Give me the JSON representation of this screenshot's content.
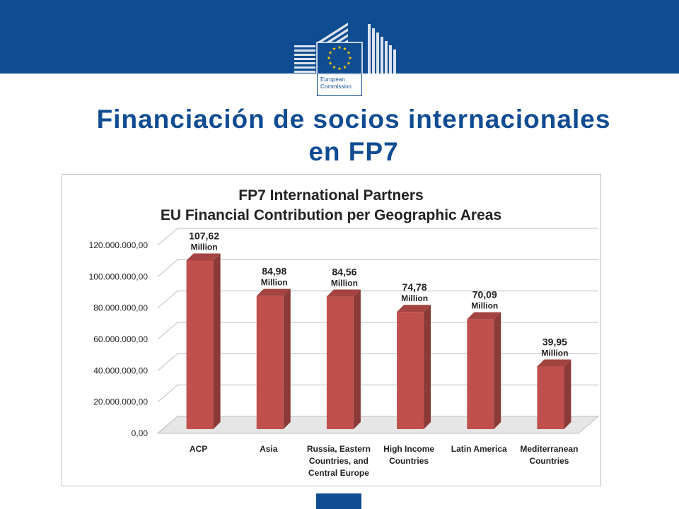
{
  "header": {
    "logo_line1": "European",
    "logo_line2": "Commission",
    "brand_color": "#0f4c92",
    "star_color": "#ffcc00"
  },
  "slide": {
    "title_line1": "Financiación de socios internacionales",
    "title_line2": "en FP7"
  },
  "chart_data": {
    "type": "bar",
    "title_lines": [
      "FP7 International Partners",
      "EU Financial Contribution per Geographic Areas"
    ],
    "categories": [
      [
        "ACP"
      ],
      [
        "Asia"
      ],
      [
        "Russia, Eastern",
        "Countries, and",
        "Central Europe"
      ],
      [
        "High Income",
        "Countries"
      ],
      [
        "Latin America"
      ],
      [
        "Mediterranean",
        "Countries"
      ]
    ],
    "values": [
      107620000,
      84980000,
      84560000,
      74780000,
      70090000,
      39950000
    ],
    "data_labels": [
      "107,62",
      "84,98",
      "84,56",
      "74,78",
      "70,09",
      "39,95"
    ],
    "data_label_unit": "Million",
    "y_ticks": [
      "0,00",
      "20.000.000,00",
      "40.000.000,00",
      "60.000.000,00",
      "80.000.000,00",
      "100.000.000,00",
      "120.000.000,00"
    ],
    "ylim": [
      0,
      120000000
    ],
    "grid": true,
    "bar_color": "#c0504d"
  }
}
